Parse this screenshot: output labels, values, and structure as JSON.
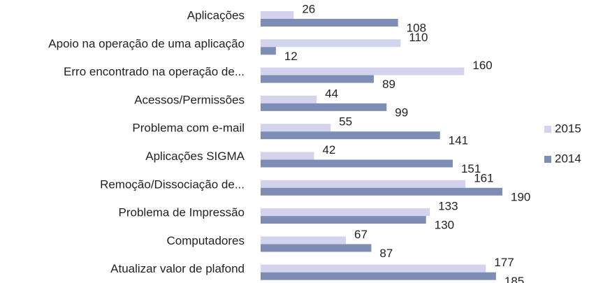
{
  "chart_data": {
    "type": "bar",
    "orientation": "horizontal",
    "categories": [
      "Aplicações",
      "Apoio na operação de uma aplicação",
      "Erro encontrado na operação de...",
      "Acessos/Permissões",
      "Problema com e-mail",
      "Aplicações SIGMA",
      "Remoção/Dissociação de...",
      "Problema de Impressão",
      "Computadores",
      "Atualizar valor de plafond"
    ],
    "series": [
      {
        "name": "2015",
        "color": "#d3d3ee",
        "values": [
          26,
          110,
          160,
          44,
          55,
          42,
          161,
          133,
          67,
          177
        ]
      },
      {
        "name": "2014",
        "color": "#7d8db6",
        "values": [
          108,
          12,
          89,
          99,
          141,
          151,
          190,
          130,
          87,
          185
        ]
      }
    ],
    "legend": "right"
  }
}
